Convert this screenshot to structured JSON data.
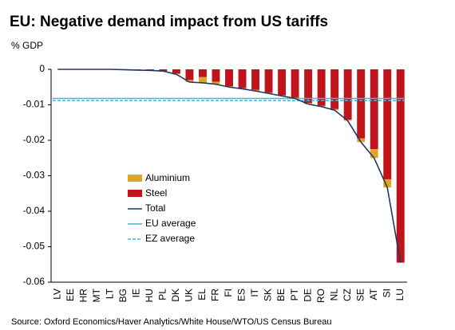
{
  "chart_data": {
    "type": "bar",
    "stacked": true,
    "title": "EU: Negative demand impact from US tariffs",
    "y_label": "% GDP",
    "source": "Source: Oxford Economics/Haver Analytics/White House/WTO/US Census Bureau",
    "categories": [
      "LV",
      "EE",
      "HR",
      "MT",
      "LT",
      "BG",
      "IE",
      "HU",
      "PL",
      "DK",
      "UK",
      "EL",
      "FR",
      "FI",
      "ES",
      "IT",
      "SK",
      "BE",
      "PT",
      "DE",
      "RO",
      "NL",
      "CZ",
      "SE",
      "AT",
      "SI",
      "LU"
    ],
    "series": [
      {
        "name": "Aluminium",
        "type": "bar",
        "color": "#e0a526",
        "values": [
          0,
          0,
          0,
          0,
          0,
          0,
          0,
          0,
          0,
          -0.0002,
          -0.0006,
          -0.0016,
          -0.0007,
          -0.0002,
          -0.0002,
          -0.0003,
          -0.0002,
          -0.0002,
          -0.0002,
          -0.0003,
          -0.0002,
          -0.0003,
          -0.0003,
          -0.001,
          -0.0025,
          -0.0023,
          0
        ]
      },
      {
        "name": "Steel",
        "type": "bar",
        "color": "#c0141c",
        "values": [
          0,
          0,
          0,
          0,
          0,
          -0.0001,
          -0.0002,
          -0.0003,
          -0.0005,
          -0.0012,
          -0.003,
          -0.0022,
          -0.0035,
          -0.0048,
          -0.0053,
          -0.0058,
          -0.0066,
          -0.0073,
          -0.008,
          -0.0095,
          -0.0103,
          -0.0112,
          -0.0142,
          -0.0195,
          -0.0225,
          -0.031,
          -0.0545
        ]
      },
      {
        "name": "Total",
        "type": "line",
        "color": "#1f3864",
        "values": [
          0,
          0,
          0,
          0,
          0,
          -0.0001,
          -0.0002,
          -0.0003,
          -0.0005,
          -0.0014,
          -0.0036,
          -0.0038,
          -0.0042,
          -0.005,
          -0.0055,
          -0.0061,
          -0.0068,
          -0.0075,
          -0.0082,
          -0.0098,
          -0.0105,
          -0.0115,
          -0.0145,
          -0.0205,
          -0.025,
          -0.0333,
          -0.0545
        ]
      }
    ],
    "reference_lines": [
      {
        "name": "EU average",
        "color": "#3fb6e0",
        "value": -0.0082,
        "style": "solid"
      },
      {
        "name": "EZ average",
        "color": "#3fb6e0",
        "value": -0.0088,
        "style": "dashed"
      }
    ],
    "ylim": [
      -0.06,
      0
    ],
    "yticks": [
      0,
      -0.01,
      -0.02,
      -0.03,
      -0.04,
      -0.05,
      -0.06
    ]
  }
}
